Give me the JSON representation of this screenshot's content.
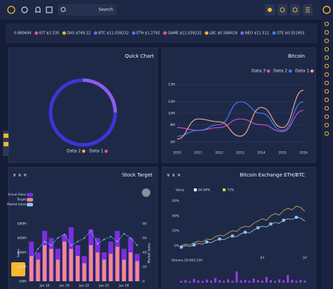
{
  "search_placeholder": "Search",
  "ticker": [
    "0.880694",
    "IOT $2.535",
    "DAS $769.22",
    "BTC $11.039232",
    "ETH $1.2792",
    "GAME $11.039232",
    "LBC $0.588418",
    "NEO $11.511",
    "STE $0.551955"
  ],
  "chart_data": [
    {
      "type": "pie",
      "title": "Quick Chart",
      "categories": [
        "Data 2",
        "Data 1"
      ],
      "values": [
        25,
        75
      ],
      "colors": [
        "#8a5cf0",
        "#3a36d8"
      ],
      "legend_colors": [
        "#f5b82e",
        "#f0507a"
      ]
    },
    {
      "type": "line",
      "title": "Bitcoin",
      "x": [
        2010,
        2011,
        2012,
        2013,
        2014,
        2015,
        2016
      ],
      "xlim": [
        2010,
        2016
      ],
      "xticks": [
        2010,
        2011,
        2012,
        2013,
        2014,
        2015,
        2016
      ],
      "ylim": [
        4,
        16
      ],
      "yticks": [
        {
          "value": 5,
          "label": "5M"
        },
        {
          "value": 8,
          "label": "8M"
        },
        {
          "value": 10,
          "label": "10M"
        },
        {
          "value": 12,
          "label": "12M"
        },
        {
          "value": 15,
          "label": "15M"
        }
      ],
      "grid": true,
      "series": [
        {
          "name": "Data 3",
          "color": "#d94ad0",
          "values": [
            7.5,
            7,
            7.5,
            9,
            8,
            6.8,
            10.5
          ]
        },
        {
          "name": "Data 2",
          "color": "#3d7ef5",
          "values": [
            6,
            7,
            8,
            12,
            10,
            7,
            12
          ]
        },
        {
          "name": "Data 1",
          "color": "#f7a58a",
          "values": [
            5.5,
            9,
            8.5,
            6,
            11,
            7.5,
            14
          ]
        }
      ]
    },
    {
      "type": "combo",
      "title": "Stock Target",
      "categories": [
        null,
        null,
        "Jan 16",
        null,
        null,
        "Jan 19",
        null,
        null,
        "Jan 22",
        null,
        null,
        "Jan 25",
        null,
        null,
        "Jan 28",
        null,
        null
      ],
      "ylim": [
        0,
        80
      ],
      "yticks": [
        {
          "value": 0,
          "label": "$0M"
        },
        {
          "value": 20,
          "label": "$20M"
        },
        {
          "value": 40,
          "label": "$40M"
        },
        {
          "value": 60,
          "label": "$60M"
        },
        {
          "value": 80,
          "label": "$80M"
        }
      ],
      "y2lim": [
        0,
        80
      ],
      "y2ticks": [
        0,
        20,
        40,
        60,
        80
      ],
      "ylabel": "Sales",
      "y2label": "Market Sales",
      "series": [
        {
          "name": "Actual Sales",
          "color": "#7a2fe0",
          "values": [
            55,
            40,
            70,
            60,
            45,
            65,
            75,
            50,
            35,
            72,
            60,
            40,
            55,
            70,
            45,
            60,
            38
          ]
        },
        {
          "name": "Target",
          "color": "#f08a8a",
          "values": [
            35,
            30,
            50,
            45,
            30,
            55,
            45,
            35,
            25,
            50,
            40,
            30,
            38,
            48,
            30,
            40,
            28
          ]
        },
        {
          "name": "Market Sales",
          "color": "#8fc8f5",
          "axis": "y2",
          "values": [
            30,
            45,
            55,
            50,
            60,
            65,
            50,
            55,
            60,
            70,
            52,
            58,
            62,
            55,
            66,
            60,
            50
          ]
        }
      ]
    },
    {
      "type": "line",
      "title": "Bitcoin Exchange ETH/BTC",
      "categories": [
        null,
        null,
        null,
        null,
        null,
        null,
        null,
        null,
        null,
        null,
        null,
        null,
        null,
        null,
        null,
        null,
        null,
        null,
        null,
        "Jul",
        null,
        null,
        null,
        null,
        null,
        null,
        null,
        null,
        null,
        "Jul"
      ],
      "ylim": [
        -10,
        70
      ],
      "yticks": [
        {
          "value": 0,
          "label": "0%"
        },
        {
          "value": 20,
          "label": "20%"
        },
        {
          "value": 40,
          "label": "40%"
        },
        {
          "value": 60,
          "label": "60%"
        }
      ],
      "annotations": [
        "Value",
        "64.99%",
        "73%"
      ],
      "series": [
        {
          "name": "ETH",
          "color": "#f5c84a",
          "values": [
            0,
            2,
            1,
            4,
            6,
            5,
            9,
            8,
            12,
            14,
            13,
            17,
            20,
            19,
            24,
            26,
            25,
            30,
            33,
            36,
            34,
            40,
            43,
            41,
            47,
            50,
            48,
            53,
            51,
            46
          ]
        },
        {
          "name": "BTC",
          "color": "#cfd8ff",
          "values": [
            -2,
            0,
            -1,
            1,
            3,
            2,
            5,
            4,
            7,
            9,
            8,
            11,
            13,
            12,
            16,
            18,
            17,
            21,
            24,
            26,
            25,
            29,
            31,
            30,
            34,
            36,
            35,
            38,
            37,
            33
          ]
        }
      ],
      "volume_label": "Volume 29,942,150",
      "volume": {
        "color": "#9a3ee8",
        "ylim": [
          0,
          100
        ],
        "values": [
          10,
          14,
          8,
          20,
          12,
          9,
          16,
          11,
          25,
          13,
          10,
          18,
          9,
          60,
          12,
          15,
          10,
          22,
          14,
          11,
          30,
          13,
          9,
          17,
          12,
          40,
          15,
          10,
          14,
          11
        ]
      }
    }
  ]
}
